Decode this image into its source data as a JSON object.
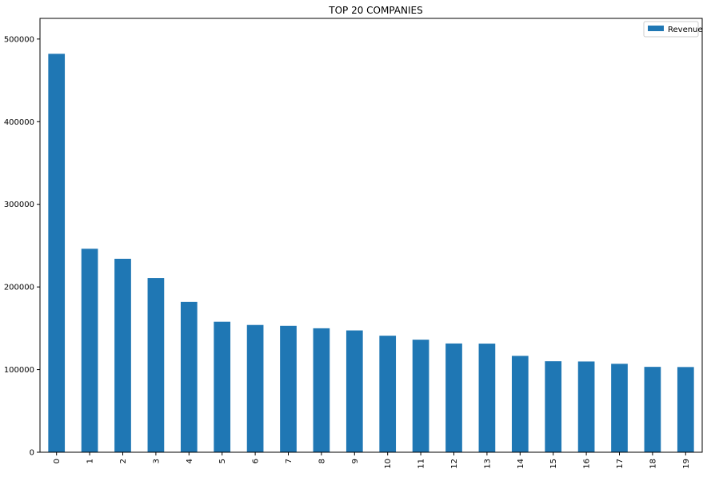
{
  "chart_data": {
    "type": "bar",
    "title": "TOP 20 COMPANIES",
    "xlabel": "",
    "ylabel": "",
    "categories": [
      "0",
      "1",
      "2",
      "3",
      "4",
      "5",
      "6",
      "7",
      "8",
      "9",
      "10",
      "11",
      "12",
      "13",
      "14",
      "15",
      "16",
      "17",
      "18",
      "19"
    ],
    "series": [
      {
        "name": "Revenue",
        "color": "#1f77b4",
        "values": [
          482130,
          246204,
          234097,
          210717,
          181900,
          157900,
          154000,
          152956,
          150000,
          147400,
          141000,
          136191,
          131600,
          131434,
          116600,
          110100,
          109800,
          107000,
          103300,
          103100
        ]
      }
    ],
    "ylim": [
      0,
      500000
    ],
    "yticks": [
      0,
      100000,
      200000,
      300000,
      400000,
      500000
    ],
    "ytick_labels": [
      "0",
      "100000",
      "200000",
      "300000",
      "400000",
      "500000"
    ],
    "grid": false,
    "legend": {
      "position": "top-right",
      "entries": [
        "Revenue"
      ]
    }
  }
}
